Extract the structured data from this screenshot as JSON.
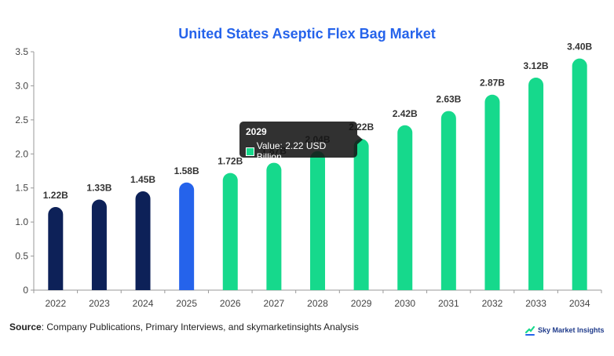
{
  "chart_data": {
    "type": "bar",
    "title": "United States Aseptic Flex Bag Market",
    "categories": [
      "2022",
      "2023",
      "2024",
      "2025",
      "2026",
      "2027",
      "2028",
      "2029",
      "2030",
      "2031",
      "2032",
      "2033",
      "2034"
    ],
    "values": [
      1.22,
      1.33,
      1.45,
      1.58,
      1.72,
      1.87,
      2.04,
      2.22,
      2.42,
      2.63,
      2.87,
      3.12,
      3.4
    ],
    "data_labels": [
      "1.22B",
      "1.33B",
      "1.45B",
      "1.58B",
      "1.72B",
      "1.87B",
      "2.04B",
      "2.22B",
      "2.42B",
      "2.63B",
      "2.87B",
      "3.12B",
      "3.40B"
    ],
    "bar_colors": [
      "#0d2158",
      "#0d2158",
      "#0d2158",
      "#2563eb",
      "#16d98c",
      "#16d98c",
      "#16d98c",
      "#16d98c",
      "#16d98c",
      "#16d98c",
      "#16d98c",
      "#16d98c",
      "#16d98c"
    ],
    "ylim": [
      0,
      3.5
    ],
    "yticks": [
      "0",
      "0.5",
      "1.0",
      "1.5",
      "2.0",
      "2.5",
      "3.0",
      "3.5"
    ],
    "grid": false,
    "highlight_index": 7
  },
  "tooltip": {
    "title": "2029",
    "label": "Value: 2.22 USD Billion",
    "swatch_color": "#16d98c"
  },
  "source": {
    "prefix": "Source",
    "text": ": Company Publications, Primary Interviews, and skymarketinsights Analysis"
  },
  "brand": {
    "name": "Sky Market Insights",
    "color": "#1e3a8a"
  }
}
